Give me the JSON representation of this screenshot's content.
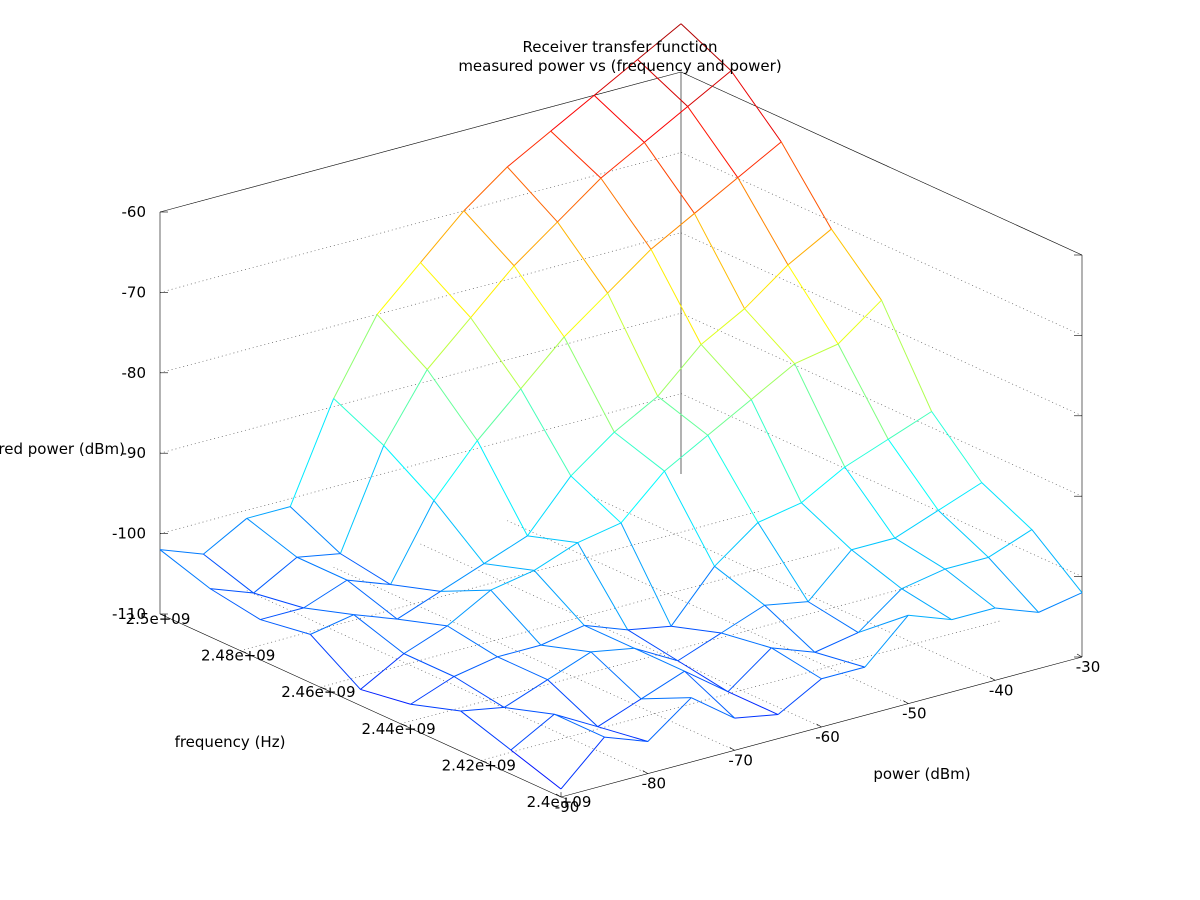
{
  "chart_data": {
    "type": "surface3d",
    "title": "Receiver transfer function",
    "subtitle": "measured power vs (frequency and power)",
    "xlabel": "frequency (Hz)",
    "ylabel": "power (dBm)",
    "zlabel": "measured power (dBm)",
    "x_ticks": [
      "2.4e+09",
      "2.42e+09",
      "2.44e+09",
      "2.46e+09",
      "2.48e+09",
      "2.5e+09"
    ],
    "y_ticks": [
      "-90",
      "-80",
      "-70",
      "-60",
      "-50",
      "-40",
      "-30"
    ],
    "z_ticks": [
      "-110",
      "-100",
      "-90",
      "-80",
      "-70",
      "-60"
    ],
    "xlim": [
      2400000000,
      2500000000
    ],
    "ylim": [
      -90,
      -30
    ],
    "zlim": [
      -110,
      -60
    ],
    "grid": true,
    "colormap": [
      "#0000ff",
      "#00a0ff",
      "#00ffff",
      "#7fff7f",
      "#ffff00",
      "#ff8000",
      "#ff0000",
      "#a00000"
    ],
    "row_x_values": [
      2400000000,
      2412500000,
      2425000000,
      2437500000,
      2450000000,
      2462500000,
      2475000000,
      2487500000,
      2500000000
    ],
    "column_y_values": [
      -90,
      -85,
      -80,
      -75,
      -70,
      -65,
      -60,
      -55,
      -50,
      -45,
      -40,
      -35,
      -30
    ],
    "z": [
      [
        -109,
        -104,
        -106,
        -102,
        -106,
        -107,
        -104,
        -104,
        -99,
        -101,
        -101,
        -103,
        -102
      ],
      [
        -107,
        -104,
        -107,
        -105,
        -103,
        -107,
        -103,
        -105,
        -104,
        -100,
        -99,
        -99,
        -97
      ],
      [
        -105,
        -106,
        -104,
        -102,
        -103,
        -106,
        -104,
        -102,
        -103,
        -98,
        -98,
        -96,
        -94
      ],
      [
        -107,
        -105,
        -104,
        -104,
        -103,
        -105,
        -106,
        -100,
        -96,
        -95,
        -92,
        -90,
        -88
      ],
      [
        -108,
        -105,
        -103,
        -100,
        -99,
        -97,
        -96,
        -91,
        -88,
        -85,
        -82,
        -81,
        -77
      ],
      [
        -104,
        -103,
        -105,
        -103,
        -101,
        -99,
        -93,
        -89,
        -86,
        -81,
        -78,
        -74,
        -71
      ],
      [
        -105,
        -105,
        -103,
        -105,
        -96,
        -90,
        -85,
        -80,
        -76,
        -72,
        -69,
        -66,
        -63
      ],
      [
        -104,
        -106,
        -103,
        -104,
        -92,
        -84,
        -79,
        -74,
        -70,
        -66,
        -63,
        -60,
        -57
      ],
      [
        -102,
        -104,
        -101,
        -101,
        -89,
        -80,
        -75,
        -70,
        -66,
        -63,
        -60,
        -57,
        -54
      ]
    ]
  }
}
